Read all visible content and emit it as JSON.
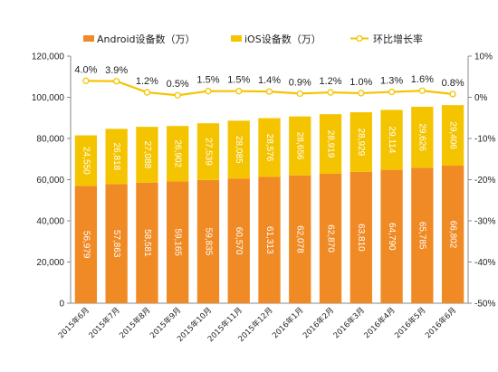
{
  "chart_data": {
    "type": "bar",
    "stacked": true,
    "categories": [
      "2015年6月",
      "2015年7月",
      "2015年8月",
      "2015年9月",
      "2015年10月",
      "2015年11月",
      "2015年12月",
      "2016年1月",
      "2016年2月",
      "2016年3月",
      "2016年4月",
      "2016年5月",
      "2016年6月"
    ],
    "series": [
      {
        "name": "Android设备数（万）",
        "color": "#f08a24",
        "values": [
          56979,
          57863,
          58581,
          59165,
          59835,
          60570,
          61313,
          62078,
          62870,
          63810,
          64790,
          65785,
          66802
        ],
        "labels": [
          "56,979",
          "57,863",
          "58,581",
          "59,165",
          "59,835",
          "60,570",
          "61,313",
          "62,078",
          "62,870",
          "63,810",
          "64,790",
          "65,785",
          "66,802"
        ]
      },
      {
        "name": "iOS设备数（万）",
        "color": "#f5c400",
        "values": [
          24550,
          26818,
          27088,
          26902,
          27539,
          28085,
          28576,
          28656,
          28919,
          28929,
          29114,
          29626,
          29406
        ],
        "labels": [
          "24,550",
          "26,818",
          "27,088",
          "26,902",
          "27,539",
          "28,085",
          "28,576",
          "28,656",
          "28,919",
          "28,929",
          "29,114",
          "29,626",
          "29,406"
        ]
      }
    ],
    "line_series": {
      "name": "环比增长率",
      "color": "#f5c400",
      "values": [
        4.0,
        3.9,
        1.2,
        0.5,
        1.5,
        1.5,
        1.4,
        0.9,
        1.2,
        1.0,
        1.3,
        1.6,
        0.8
      ],
      "labels": [
        "4.0%",
        "3.9%",
        "1.2%",
        "0.5%",
        "1.5%",
        "1.5%",
        "1.4%",
        "0.9%",
        "1.2%",
        "1.0%",
        "1.3%",
        "1.6%",
        "0.8%"
      ]
    },
    "ylim": [
      0,
      120000
    ],
    "yticks": [
      0,
      20000,
      40000,
      60000,
      80000,
      100000,
      120000
    ],
    "ytick_labels": [
      "0",
      "20,000",
      "40,000",
      "60,000",
      "80,000",
      "100,000",
      "120,000"
    ],
    "y2lim": [
      -50,
      10
    ],
    "y2ticks": [
      10,
      0,
      -10,
      -20,
      -30,
      -40,
      -50
    ],
    "y2tick_labels": [
      "10%",
      "0%",
      "-10%",
      "-20%",
      "-30%",
      "-40%",
      "-50%"
    ],
    "legend_position": "top",
    "grid": false
  }
}
